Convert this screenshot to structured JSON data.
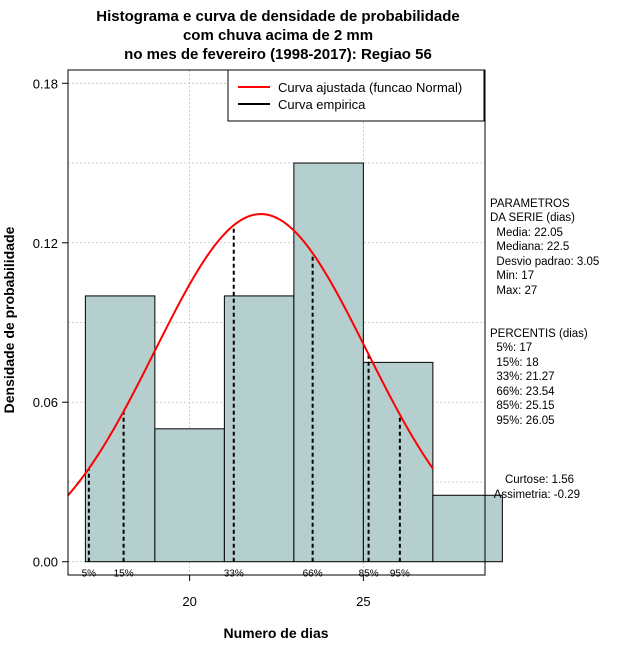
{
  "chart_data": {
    "type": "bar",
    "title": [
      "Histograma e curva de densidade de probabilidade",
      "com chuva acima de 2 mm",
      "no mes de fevereiro (1998-2017): Regiao 56"
    ],
    "xlabel": "Numero de dias",
    "ylabel": "Densidade de probabilidade",
    "xlim": [
      16.5,
      28.5
    ],
    "ylim": [
      -0.005,
      0.185
    ],
    "xticks": [
      20,
      25
    ],
    "yticks": [
      "0.00",
      "0.06",
      "0.12",
      "0.18"
    ],
    "ytick_values": [
      0.0,
      0.06,
      0.12,
      0.18
    ],
    "grid": true,
    "bins": [
      {
        "from": 17,
        "to": 19,
        "density": 0.1
      },
      {
        "from": 19,
        "to": 21,
        "density": 0.05
      },
      {
        "from": 21,
        "to": 23,
        "density": 0.1
      },
      {
        "from": 23,
        "to": 25,
        "density": 0.15
      },
      {
        "from": 25,
        "to": 27,
        "density": 0.075
      },
      {
        "from": 27,
        "to": 29,
        "density": 0.025
      }
    ],
    "fitted_curve": {
      "name": "Curva ajustada (funcao Normal)",
      "color": "#ff0000",
      "mean": 22.05,
      "sd": 3.05,
      "x_from": 16.5,
      "x_to": 27.0
    },
    "empirical_curve": {
      "name": "Curva empirica",
      "color": "#000000"
    },
    "percentiles": [
      {
        "label": "5%",
        "x": 17.1
      },
      {
        "label": "15%",
        "x": 18.1
      },
      {
        "label": "33%",
        "x": 21.27
      },
      {
        "label": "66%",
        "x": 23.54
      },
      {
        "label": "85%",
        "x": 25.15
      },
      {
        "label": "95%",
        "x": 26.05
      }
    ],
    "legend": [
      "Curva ajustada (funcao Normal)",
      "Curva empirica"
    ],
    "legend_position": "top-right"
  },
  "colors": {
    "bar_fill": "#b5cece",
    "fitted_curve": "#ff0000",
    "grid": "#bfbfbf"
  },
  "side_panel": {
    "params_lines": [
      "PARAMETROS",
      "DA SERIE (dias)",
      "  Media: 22.05",
      "  Mediana: 22.5",
      "  Desvio padrao: 3.05",
      "  Min: 17",
      "  Max: 27"
    ],
    "percentis_lines": [
      "PERCENTIS (dias)",
      "  5%: 17",
      "  15%: 18",
      "  33%: 21.27",
      "  66%: 23.54",
      "  85%: 25.15",
      "  95%: 26.05"
    ],
    "shape_lines": [
      "Curtose: 1.56",
      "Assimetria: -0.29"
    ]
  }
}
